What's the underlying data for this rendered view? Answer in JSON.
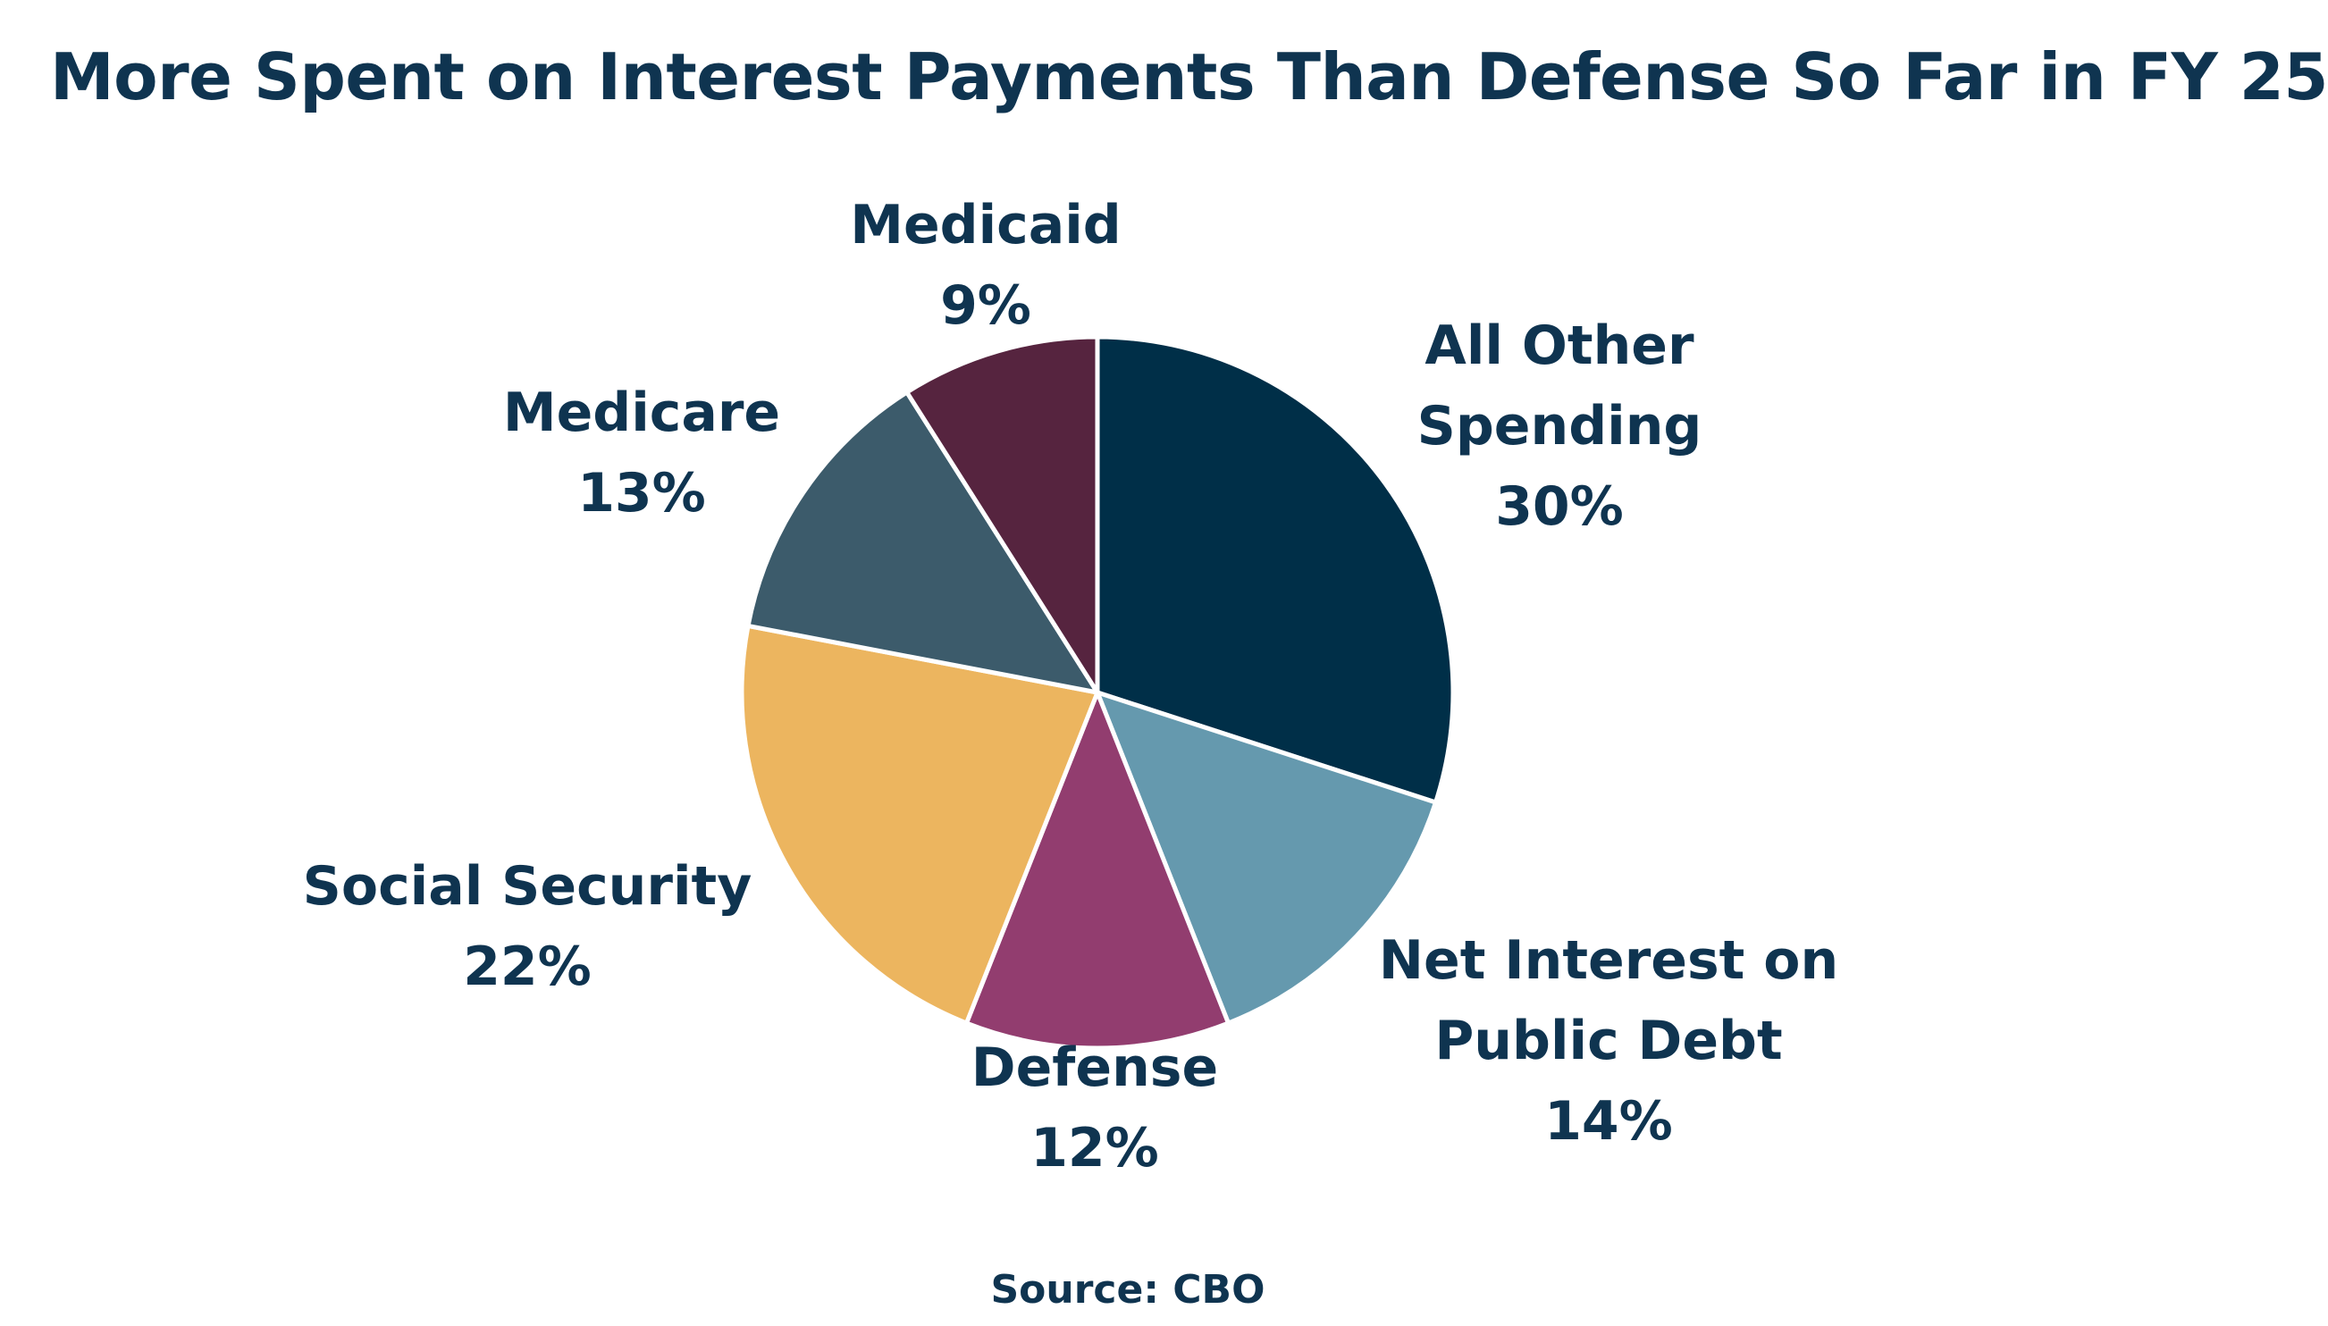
{
  "chart_data": {
    "type": "pie",
    "title": "More Spent on Interest Payments Than Defense So Far in FY 25",
    "source": "Source: CBO",
    "slices": [
      {
        "label": [
          "All Other",
          "Spending"
        ],
        "value": 30,
        "value_label": "30%",
        "color": "#002f48"
      },
      {
        "label": [
          "Net Interest on",
          "Public Debt"
        ],
        "value": 14,
        "value_label": "14%",
        "color": "#6599ae"
      },
      {
        "label": [
          "Defense"
        ],
        "value": 12,
        "value_label": "12%",
        "color": "#923d6f"
      },
      {
        "label": [
          "Social Security"
        ],
        "value": 22,
        "value_label": "22%",
        "color": "#ecb55f"
      },
      {
        "label": [
          "Medicare"
        ],
        "value": 13,
        "value_label": "13%",
        "color": "#3c5b6b"
      },
      {
        "label": [
          "Medicaid"
        ],
        "value": 9,
        "value_label": "9%",
        "color": "#56243f"
      }
    ]
  }
}
